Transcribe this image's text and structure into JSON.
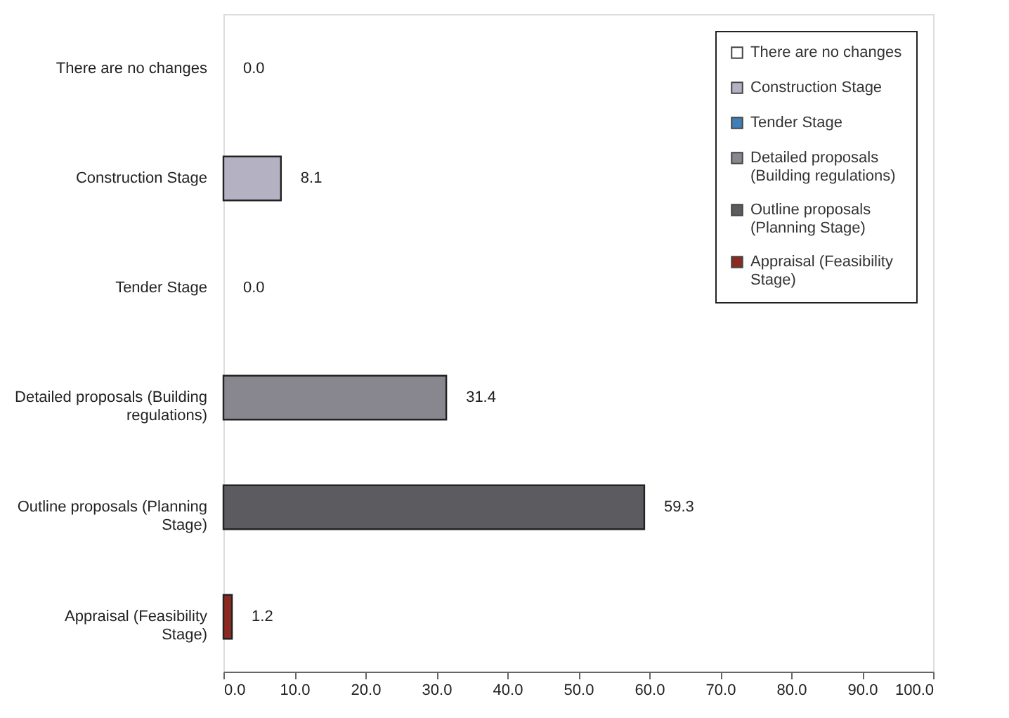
{
  "chart_data": {
    "type": "bar",
    "orientation": "horizontal",
    "categories": [
      "There are no changes",
      "Construction Stage",
      "Tender Stage",
      "Detailed proposals (Building regulations)",
      "Outline proposals (Planning Stage)",
      "Appraisal (Feasibility Stage)"
    ],
    "series": [
      {
        "name": "There are no changes",
        "color": "#ffffff",
        "values": [
          0.0,
          null,
          null,
          null,
          null,
          null
        ],
        "value_labels": [
          "0.0",
          null,
          null,
          null,
          null,
          null
        ]
      },
      {
        "name": "Construction Stage",
        "color": "#b4b2c2",
        "values": [
          null,
          8.1,
          null,
          null,
          null,
          null
        ],
        "value_labels": [
          null,
          "8.1",
          null,
          null,
          null,
          null
        ]
      },
      {
        "name": "Tender Stage",
        "color": "#3f7fb8",
        "values": [
          null,
          null,
          0.0,
          null,
          null,
          null
        ],
        "value_labels": [
          null,
          null,
          "0.0",
          null,
          null,
          null
        ]
      },
      {
        "name": "Detailed proposals (Building regulations)",
        "color": "#88868e",
        "values": [
          null,
          null,
          null,
          31.4,
          null,
          null
        ],
        "value_labels": [
          null,
          null,
          null,
          "31.4",
          null,
          null
        ]
      },
      {
        "name": "Outline proposals (Planning Stage)",
        "color": "#5c5b60",
        "values": [
          null,
          null,
          null,
          null,
          59.3,
          null
        ],
        "value_labels": [
          null,
          null,
          null,
          null,
          "59.3",
          null
        ]
      },
      {
        "name": "Appraisal (Feasibility Stage)",
        "color": "#8c2a22",
        "values": [
          null,
          null,
          null,
          null,
          null,
          1.2
        ],
        "value_labels": [
          null,
          null,
          null,
          null,
          null,
          "1.2"
        ]
      }
    ],
    "xlim": [
      0,
      100
    ],
    "xticks": [
      {
        "value": 0,
        "label": "0.0"
      },
      {
        "value": 10,
        "label": "10.0"
      },
      {
        "value": 20,
        "label": "20.0"
      },
      {
        "value": 30,
        "label": "30.0"
      },
      {
        "value": 40,
        "label": "40.0"
      },
      {
        "value": 50,
        "label": "50.0"
      },
      {
        "value": 60,
        "label": "60.0"
      },
      {
        "value": 70,
        "label": "70.0"
      },
      {
        "value": 80,
        "label": "80.0"
      },
      {
        "value": 90,
        "label": "90.0"
      },
      {
        "value": 100,
        "label": "100.0"
      }
    ],
    "legend": "top right",
    "grid": false
  }
}
